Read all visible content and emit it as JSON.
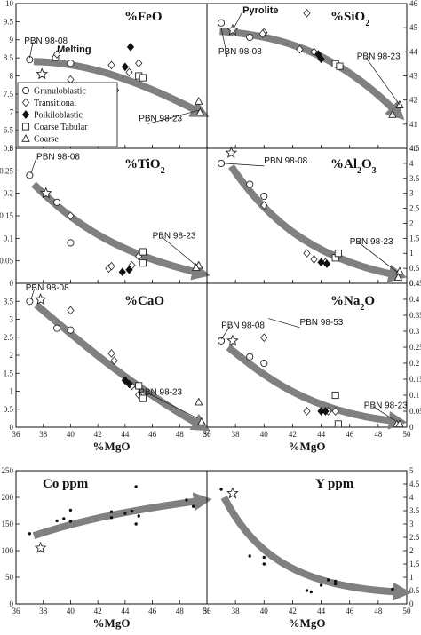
{
  "chart_data": [
    {
      "type": "scatter",
      "id": "feo",
      "title": "%FeO",
      "xlim": [
        36,
        50
      ],
      "ylim": [
        6,
        10
      ],
      "yticks": [
        "6",
        "6.5",
        "7",
        "7.5",
        "8",
        "8.5",
        "9",
        "9.5",
        "10"
      ],
      "points": [
        {
          "m": "circle",
          "x": 37,
          "y": 8.45
        },
        {
          "m": "circle",
          "x": 38.9,
          "y": 8.5
        },
        {
          "m": "circle",
          "x": 40,
          "y": 8.35
        },
        {
          "m": "diamond",
          "x": 39,
          "y": 8.6
        },
        {
          "m": "diamond",
          "x": 40,
          "y": 7.9
        },
        {
          "m": "diamond",
          "x": 43,
          "y": 8.3
        },
        {
          "m": "diamond",
          "x": 43.3,
          "y": 7.6
        },
        {
          "m": "diamond",
          "x": 44.3,
          "y": 8.1
        },
        {
          "m": "diamond",
          "x": 45,
          "y": 8.35
        },
        {
          "m": "filled-diamond",
          "x": 44,
          "y": 8.25
        },
        {
          "m": "filled-diamond",
          "x": 44.4,
          "y": 8.8
        },
        {
          "m": "square",
          "x": 45,
          "y": 8
        },
        {
          "m": "square",
          "x": 45.3,
          "y": 7.95
        },
        {
          "m": "triangle",
          "x": 49.4,
          "y": 7.3
        },
        {
          "m": "triangle",
          "x": 49.5,
          "y": 7
        },
        {
          "m": "star",
          "x": 37.9,
          "y": 8.05
        }
      ],
      "arrow": [
        [
          37.3,
          8.4
        ],
        [
          40.5,
          8.38
        ],
        [
          44,
          8.05
        ],
        [
          49.2,
          7.05
        ]
      ],
      "annotations": [
        {
          "text": "PBN 98-08",
          "x": 36.6,
          "y": 8.9,
          "to": [
            37,
            8.5
          ]
        },
        {
          "text": "Melting",
          "x": 39,
          "y": 8.65,
          "bold": true
        },
        {
          "text": "PBN 98-23",
          "x": 45,
          "y": 6.75,
          "to": [
            49.4,
            7.05
          ]
        }
      ],
      "legend": [
        "Granuloblastic",
        "Transitional",
        "Poikiloblastic",
        "Coarse Tabular",
        "Coarse"
      ]
    },
    {
      "type": "scatter",
      "id": "sio2",
      "title": "%SiO2",
      "xlim": [
        36,
        50
      ],
      "ylim": [
        40,
        46
      ],
      "yticks": [
        "40",
        "41",
        "42",
        "43",
        "44",
        "45",
        "46"
      ],
      "points": [
        {
          "m": "circle",
          "x": 37,
          "y": 45.2
        },
        {
          "m": "circle",
          "x": 39,
          "y": 44.6
        },
        {
          "m": "diamond",
          "x": 40,
          "y": 44.8
        },
        {
          "m": "diamond",
          "x": 39.9,
          "y": 44.75
        },
        {
          "m": "diamond",
          "x": 43,
          "y": 45.6
        },
        {
          "m": "diamond",
          "x": 42.5,
          "y": 44.1
        },
        {
          "m": "diamond",
          "x": 43.5,
          "y": 44
        },
        {
          "m": "filled-diamond",
          "x": 44,
          "y": 43.7
        },
        {
          "m": "filled-diamond",
          "x": 43.8,
          "y": 43.9
        },
        {
          "m": "square",
          "x": 45,
          "y": 43.5
        },
        {
          "m": "square",
          "x": 45.3,
          "y": 43.4
        },
        {
          "m": "triangle",
          "x": 49.5,
          "y": 41.8
        },
        {
          "m": "triangle",
          "x": 49,
          "y": 41.4
        },
        {
          "m": "star",
          "x": 37.8,
          "y": 44.9
        }
      ],
      "arrow": [
        [
          36.9,
          44.85
        ],
        [
          41,
          44.7
        ],
        [
          45,
          44
        ],
        [
          49.1,
          41.6
        ]
      ],
      "annotations": [
        {
          "text": "Pyrolite",
          "x": 38.5,
          "y": 45.6,
          "to": [
            37.9,
            45
          ],
          "bold": true
        },
        {
          "text": "PBN 98-08",
          "x": 36.8,
          "y": 43.9,
          "to": [
            37,
            45
          ]
        },
        {
          "text": "PBN 98-23",
          "x": 46.5,
          "y": 43.7,
          "to": [
            49.5,
            41.8
          ]
        }
      ]
    },
    {
      "type": "scatter",
      "id": "tio2",
      "title": "%TiO2",
      "xlim": [
        36,
        50
      ],
      "ylim": [
        0,
        0.3
      ],
      "yticks": [
        "0",
        "0.05",
        "0.1",
        "0.15",
        "0.2",
        "0.25",
        "0.3"
      ],
      "points": [
        {
          "m": "circle",
          "x": 37,
          "y": 0.24
        },
        {
          "m": "circle",
          "x": 39,
          "y": 0.18
        },
        {
          "m": "circle",
          "x": 40,
          "y": 0.09
        },
        {
          "m": "diamond",
          "x": 40,
          "y": 0.15
        },
        {
          "m": "diamond",
          "x": 42.8,
          "y": 0.033
        },
        {
          "m": "diamond",
          "x": 43,
          "y": 0.038
        },
        {
          "m": "diamond",
          "x": 44.5,
          "y": 0.04
        },
        {
          "m": "diamond",
          "x": 45,
          "y": 0.06
        },
        {
          "m": "filled-diamond",
          "x": 43.8,
          "y": 0.025
        },
        {
          "m": "filled-diamond",
          "x": 44.3,
          "y": 0.03
        },
        {
          "m": "square",
          "x": 45.3,
          "y": 0.07
        },
        {
          "m": "square",
          "x": 45.3,
          "y": 0.045
        },
        {
          "m": "triangle",
          "x": 49.4,
          "y": 0.04
        },
        {
          "m": "triangle",
          "x": 49.2,
          "y": 0.035
        },
        {
          "m": "star",
          "x": 38.2,
          "y": 0.2
        }
      ],
      "arrow": [
        [
          37.3,
          0.22
        ],
        [
          40,
          0.14
        ],
        [
          43,
          0.07
        ],
        [
          49.2,
          0.025
        ]
      ],
      "annotations": [
        {
          "text": "PBN 98-08",
          "x": 37.5,
          "y": 0.275,
          "to": [
            37.1,
            0.245
          ]
        },
        {
          "text": "PBN 98-23",
          "x": 46,
          "y": 0.1,
          "to": [
            49.2,
            0.04
          ]
        }
      ]
    },
    {
      "type": "scatter",
      "id": "al2o3",
      "title": "%Al2O3",
      "xlim": [
        36,
        50
      ],
      "ylim": [
        0,
        4.5
      ],
      "yticks": [
        "0",
        "0.5",
        "1",
        "1.5",
        "2",
        "2.5",
        "3",
        "3.5",
        "4",
        "4.5"
      ],
      "points": [
        {
          "m": "circle",
          "x": 37,
          "y": 4
        },
        {
          "m": "circle",
          "x": 39,
          "y": 3.3
        },
        {
          "m": "circle",
          "x": 40,
          "y": 2.9
        },
        {
          "m": "diamond",
          "x": 40,
          "y": 2.6
        },
        {
          "m": "diamond",
          "x": 43,
          "y": 1
        },
        {
          "m": "diamond",
          "x": 43.5,
          "y": 0.8
        },
        {
          "m": "diamond",
          "x": 44.3,
          "y": 0.7
        },
        {
          "m": "filled-diamond",
          "x": 44,
          "y": 0.7
        },
        {
          "m": "filled-diamond",
          "x": 44.4,
          "y": 0.65
        },
        {
          "m": "square",
          "x": 45,
          "y": 0.85
        },
        {
          "m": "square",
          "x": 45.2,
          "y": 1
        },
        {
          "m": "triangle",
          "x": 49.5,
          "y": 0.4
        },
        {
          "m": "triangle",
          "x": 49.4,
          "y": 0.2
        },
        {
          "m": "star",
          "x": 37.7,
          "y": 4.35
        }
      ],
      "arrow": [
        [
          37.7,
          3.9
        ],
        [
          40,
          2.3
        ],
        [
          43,
          0.9
        ],
        [
          49,
          0.3
        ]
      ],
      "annotations": [
        {
          "text": "PBN 98-08",
          "x": 40,
          "y": 4,
          "to": [
            37.2,
            4
          ]
        },
        {
          "text": "PBN 98-23",
          "x": 46,
          "y": 1.3,
          "to": [
            49.4,
            0.35
          ]
        }
      ]
    },
    {
      "type": "scatter",
      "id": "cao",
      "title": "%CaO",
      "xlim": [
        36,
        50
      ],
      "ylim": [
        0,
        4
      ],
      "yticks": [
        "0",
        "0.5",
        "1",
        "1.5",
        "2",
        "2.5",
        "3",
        "3.5"
      ],
      "points": [
        {
          "m": "circle",
          "x": 37,
          "y": 3.5
        },
        {
          "m": "circle",
          "x": 39,
          "y": 2.75
        },
        {
          "m": "circle",
          "x": 40,
          "y": 2.7
        },
        {
          "m": "diamond",
          "x": 40,
          "y": 3.25
        },
        {
          "m": "diamond",
          "x": 43,
          "y": 2.05
        },
        {
          "m": "diamond",
          "x": 43.2,
          "y": 1.85
        },
        {
          "m": "diamond",
          "x": 44.5,
          "y": 1.15
        },
        {
          "m": "diamond",
          "x": 45,
          "y": 0.9
        },
        {
          "m": "filled-diamond",
          "x": 44,
          "y": 1.3
        },
        {
          "m": "filled-diamond",
          "x": 44.3,
          "y": 1.2
        },
        {
          "m": "square",
          "x": 45,
          "y": 1.15
        },
        {
          "m": "square",
          "x": 45.3,
          "y": 0.8
        },
        {
          "m": "triangle",
          "x": 49.4,
          "y": 0.7
        },
        {
          "m": "triangle",
          "x": 49.6,
          "y": 0.15
        },
        {
          "m": "star",
          "x": 37.8,
          "y": 3.55
        }
      ],
      "arrow": [
        [
          37.5,
          3.4
        ],
        [
          40,
          2.6
        ],
        [
          44,
          1.25
        ],
        [
          49.3,
          0.1
        ]
      ],
      "annotations": [
        {
          "text": "PBN 98-08",
          "x": 36.7,
          "y": 3.8,
          "to": [
            37.1,
            3.55
          ]
        },
        {
          "text": "PBN 98-23",
          "x": 45,
          "y": 0.9,
          "to": [
            49.3,
            0.25
          ]
        }
      ]
    },
    {
      "type": "scatter",
      "id": "na2o",
      "title": "%Na2O",
      "xlim": [
        36,
        50
      ],
      "ylim": [
        0,
        0.45
      ],
      "yticks": [
        "0",
        "0.05",
        "0.1",
        "0.15",
        "0.2",
        "0.25",
        "0.3",
        "0.35",
        "0.4",
        "0.45"
      ],
      "points": [
        {
          "m": "circle",
          "x": 37,
          "y": 0.27
        },
        {
          "m": "circle",
          "x": 39,
          "y": 0.22
        },
        {
          "m": "circle",
          "x": 40,
          "y": 0.2
        },
        {
          "m": "diamond",
          "x": 40,
          "y": 0.28
        },
        {
          "m": "diamond",
          "x": 43,
          "y": 0.05
        },
        {
          "m": "diamond",
          "x": 44.5,
          "y": 0.05
        },
        {
          "m": "diamond",
          "x": 45,
          "y": 0.05
        },
        {
          "m": "filled-diamond",
          "x": 44,
          "y": 0.05
        },
        {
          "m": "filled-diamond",
          "x": 44.3,
          "y": 0.05
        },
        {
          "m": "square",
          "x": 45,
          "y": 0.1
        },
        {
          "m": "square",
          "x": 45.2,
          "y": 0.01
        },
        {
          "m": "triangle",
          "x": 49.3,
          "y": 0.01
        },
        {
          "m": "triangle",
          "x": 49.5,
          "y": 0.01
        },
        {
          "m": "star",
          "x": 37.8,
          "y": 0.27
        }
      ],
      "arrow": [
        [
          37.5,
          0.25
        ],
        [
          40,
          0.16
        ],
        [
          43,
          0.05
        ],
        [
          49,
          0.02
        ]
      ],
      "annotations": [
        {
          "text": "PBN 98-08",
          "x": 37,
          "y": 0.31,
          "to": [
            37,
            0.275
          ]
        },
        {
          "text": "PBN 98-53",
          "x": 42.5,
          "y": 0.32,
          "to": [
            40.3,
            0.34
          ]
        },
        {
          "text": "PBN 98-23",
          "x": 47,
          "y": 0.06,
          "to": [
            49.2,
            0.02
          ]
        }
      ]
    },
    {
      "type": "scatter",
      "id": "co",
      "title": "Co ppm",
      "xlim": [
        36,
        50
      ],
      "ylim": [
        0,
        250
      ],
      "yticks": [
        "0",
        "50",
        "100",
        "150",
        "200",
        "250"
      ],
      "xticks": [
        "36",
        "38",
        "40",
        "42",
        "44",
        "46",
        "48",
        "50"
      ],
      "xlabel": "%MgO",
      "points": [
        {
          "m": "dot",
          "x": 37,
          "y": 132
        },
        {
          "m": "dot",
          "x": 39,
          "y": 156
        },
        {
          "m": "dot",
          "x": 39.5,
          "y": 160
        },
        {
          "m": "dot",
          "x": 40,
          "y": 176
        },
        {
          "m": "dot",
          "x": 40,
          "y": 155
        },
        {
          "m": "dot",
          "x": 43,
          "y": 173
        },
        {
          "m": "dot",
          "x": 43,
          "y": 162
        },
        {
          "m": "dot",
          "x": 44,
          "y": 170
        },
        {
          "m": "dot",
          "x": 44.5,
          "y": 174
        },
        {
          "m": "dot",
          "x": 44.8,
          "y": 220
        },
        {
          "m": "dot",
          "x": 45,
          "y": 165
        },
        {
          "m": "dot",
          "x": 44.8,
          "y": 150
        },
        {
          "m": "dot",
          "x": 48.5,
          "y": 195
        },
        {
          "m": "dot",
          "x": 49,
          "y": 183
        },
        {
          "m": "star",
          "x": 37.8,
          "y": 105
        }
      ],
      "arrow": [
        [
          37.3,
          128
        ],
        [
          41,
          160
        ],
        [
          45,
          178
        ],
        [
          49.3,
          193
        ]
      ]
    },
    {
      "type": "scatter",
      "id": "y",
      "title": "Y ppm",
      "xlim": [
        36,
        50
      ],
      "ylim": [
        0,
        5
      ],
      "yticks": [
        "0",
        "0.5",
        "1",
        "1.5",
        "2",
        "2.5",
        "3",
        "3.5",
        "4",
        "4.5",
        "5"
      ],
      "xticks": [
        "36",
        "38",
        "40",
        "42",
        "44",
        "46",
        "48",
        "50"
      ],
      "xlabel": "%MgO",
      "points": [
        {
          "m": "dot",
          "x": 37,
          "y": 4.3
        },
        {
          "m": "dot",
          "x": 39,
          "y": 1.8
        },
        {
          "m": "dot",
          "x": 40,
          "y": 1.5
        },
        {
          "m": "dot",
          "x": 40,
          "y": 1.75
        },
        {
          "m": "dot",
          "x": 43,
          "y": 0.5
        },
        {
          "m": "dot",
          "x": 43.3,
          "y": 0.45
        },
        {
          "m": "dot",
          "x": 44,
          "y": 0.7
        },
        {
          "m": "dot",
          "x": 44.5,
          "y": 0.9
        },
        {
          "m": "dot",
          "x": 45,
          "y": 0.75
        },
        {
          "m": "dot",
          "x": 45,
          "y": 0.85
        },
        {
          "m": "dot",
          "x": 49,
          "y": 0.55
        },
        {
          "m": "star",
          "x": 37.8,
          "y": 4.15
        }
      ],
      "arrow": [
        [
          37.2,
          4
        ],
        [
          39.5,
          1.6
        ],
        [
          43,
          0.65
        ],
        [
          49.3,
          0.45
        ]
      ]
    }
  ],
  "shared_axis": {
    "xticks": [
      "36",
      "38",
      "40",
      "42",
      "44",
      "46",
      "48",
      "50"
    ],
    "xlabel": "%MgO"
  }
}
